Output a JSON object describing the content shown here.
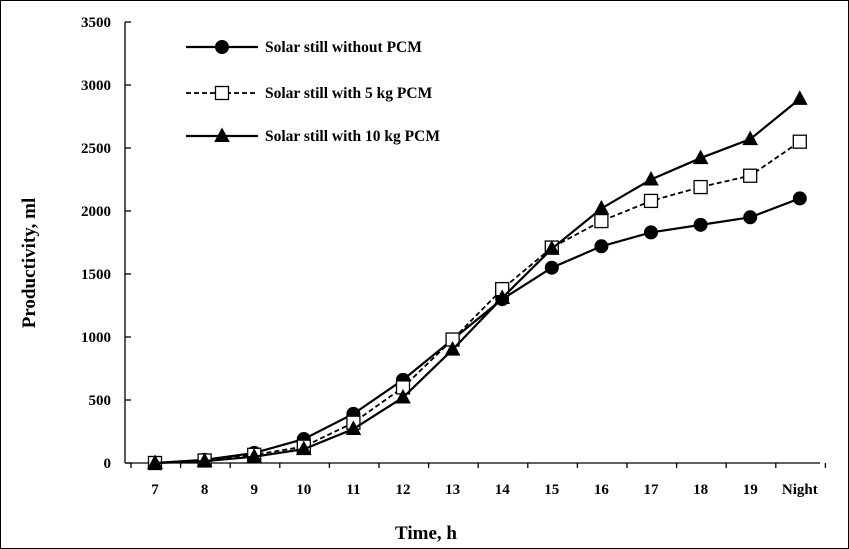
{
  "chart_data": {
    "type": "line",
    "xlabel": "Time, h",
    "ylabel": "Productivity, ml",
    "ylim": [
      0,
      3500
    ],
    "yticks": [
      0,
      500,
      1000,
      1500,
      2000,
      2500,
      3000,
      3500
    ],
    "categories": [
      "7",
      "8",
      "9",
      "10",
      "11",
      "12",
      "13",
      "14",
      "15",
      "16",
      "17",
      "18",
      "19",
      "Night"
    ],
    "grid": false,
    "legend_position": "top-left",
    "series": [
      {
        "name": "Solar still without PCM",
        "marker": "filled-circle",
        "line": "solid",
        "values": [
          0,
          25,
          80,
          190,
          390,
          660,
          980,
          1300,
          1550,
          1720,
          1830,
          1890,
          1950,
          2100
        ]
      },
      {
        "name": "Solar still with 5 kg PCM",
        "marker": "hollow-square",
        "line": "dashed",
        "values": [
          0,
          20,
          65,
          130,
          320,
          600,
          980,
          1380,
          1710,
          1920,
          2080,
          2190,
          2280,
          2550
        ]
      },
      {
        "name": "Solar still with 10 kg PCM",
        "marker": "filled-triangle",
        "line": "solid",
        "values": [
          0,
          15,
          50,
          110,
          270,
          520,
          900,
          1310,
          1700,
          2020,
          2250,
          2420,
          2570,
          2890
        ]
      }
    ]
  }
}
